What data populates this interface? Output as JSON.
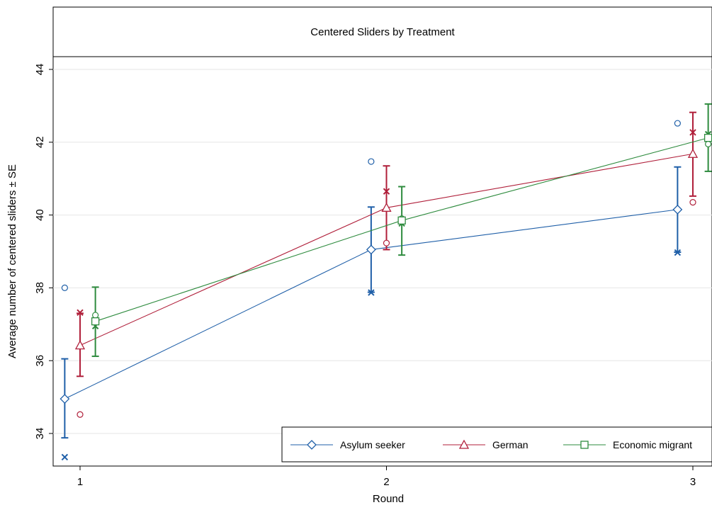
{
  "chart_data": {
    "type": "line",
    "title": "Centered Sliders by Treatment",
    "xlabel": "Round",
    "ylabel": "Average number of centered sliders ± SE",
    "xlim": [
      0.95,
      3.05
    ],
    "ylim": [
      33.3,
      44.3
    ],
    "x_ticks": [
      1,
      2,
      3
    ],
    "x_tick_labels": [
      "1",
      "2",
      "3"
    ],
    "y_ticks": [
      34,
      36,
      38,
      40,
      42,
      44
    ],
    "y_tick_labels": [
      "34",
      "36",
      "38",
      "40",
      "42",
      "44"
    ],
    "grid": true,
    "legend_position": "bottom-right",
    "series": [
      {
        "name": "Asylum seeker",
        "color": "#1f5fa8",
        "marker": "diamond",
        "offset": -0.05,
        "x": [
          1,
          2,
          3
        ],
        "mean": [
          34.95,
          39.05,
          40.15
        ],
        "se_low": [
          33.88,
          37.88,
          38.98
        ],
        "se_high": [
          36.05,
          40.22,
          41.32
        ],
        "circle_points": [
          38.0,
          41.47,
          42.52
        ],
        "cross_points": [
          33.35,
          37.87,
          38.97
        ]
      },
      {
        "name": "German",
        "color": "#b01f3a",
        "marker": "triangle",
        "offset": 0.0,
        "x": [
          1,
          2,
          3
        ],
        "mean": [
          36.42,
          40.2,
          41.68
        ],
        "se_low": [
          35.57,
          39.05,
          40.52
        ],
        "se_high": [
          37.3,
          41.35,
          42.82
        ],
        "circle_points": [
          34.52,
          39.23,
          40.35
        ],
        "cross_points": [
          37.32,
          40.65,
          42.27
        ]
      },
      {
        "name": "Economic migrant",
        "color": "#2e8b3e",
        "marker": "square",
        "offset": 0.05,
        "x": [
          1,
          2,
          3
        ],
        "mean": [
          37.08,
          39.85,
          42.12
        ],
        "se_low": [
          36.12,
          38.9,
          41.2
        ],
        "se_high": [
          38.02,
          40.78,
          43.05
        ],
        "circle_points": [
          37.25,
          39.9,
          41.95
        ],
        "cross_points": [
          36.95,
          39.77,
          42.22
        ]
      }
    ]
  }
}
